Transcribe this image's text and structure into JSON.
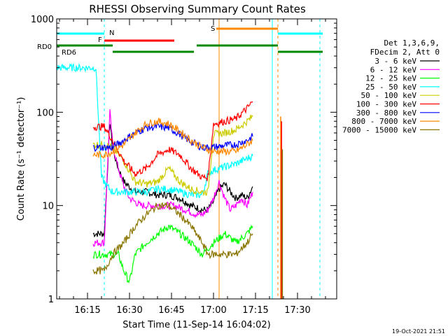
{
  "chart_data": {
    "type": "line",
    "title": "RHESSI Observing Summary Count Rates",
    "xlabel": "Start Time (11-Sep-14 16:04:02)",
    "ylabel": "Count Rate (s⁻¹ detector⁻¹)",
    "yscale": "log",
    "ylim": [
      1,
      1000
    ],
    "xlim_minutes": [
      0,
      100
    ],
    "x_ticks": [
      {
        "label": "16:15",
        "t": 11
      },
      {
        "label": "16:30",
        "t": 26
      },
      {
        "label": "16:45",
        "t": 41
      },
      {
        "label": "17:00",
        "t": 56
      },
      {
        "label": "17:15",
        "t": 71
      },
      {
        "label": "17:30",
        "t": 86
      }
    ],
    "y_ticks": [
      {
        "label": "1",
        "v": 1
      },
      {
        "label": "10",
        "v": 10
      },
      {
        "label": "100",
        "v": 100
      },
      {
        "label": "1000",
        "v": 1000
      }
    ],
    "legend_header": [
      "Det 1,3,6,9,",
      "FDecim 2, Att 0"
    ],
    "legend_position": "right",
    "footer_timestamp": "19-Oct-2021 21:51",
    "series": [
      {
        "name": "3 - 6 keV",
        "color": "#000000",
        "x": [
          13,
          17,
          19,
          20,
          22,
          24,
          28,
          32,
          36,
          40,
          44,
          48,
          52,
          54,
          56,
          58,
          60,
          62,
          64,
          66,
          68,
          70
        ],
        "y": [
          5,
          5,
          80,
          40,
          25,
          18,
          14,
          14,
          13,
          13,
          12,
          10,
          9,
          9,
          11,
          15,
          17,
          14,
          12,
          13,
          12,
          16
        ]
      },
      {
        "name": "6 - 12 keV",
        "color": "#ff00ff",
        "x": [
          13,
          17,
          19,
          20,
          22,
          24,
          26,
          30,
          34,
          38,
          42,
          46,
          50,
          52,
          54,
          56,
          58,
          60,
          62,
          64,
          66,
          68,
          70
        ],
        "y": [
          4,
          4,
          100,
          45,
          25,
          16,
          12,
          10,
          10,
          10,
          10,
          9,
          8,
          8,
          9,
          12,
          18,
          12,
          9,
          10,
          12,
          10,
          14
        ]
      },
      {
        "name": "12 - 25 keV",
        "color": "#00ff00",
        "x": [
          13,
          15,
          17,
          20,
          22,
          24,
          26,
          28,
          32,
          36,
          40,
          44,
          48,
          52,
          56,
          60,
          64,
          68,
          70
        ],
        "y": [
          3,
          3,
          3,
          3,
          3,
          2,
          1.5,
          3,
          4,
          5,
          6,
          5,
          4,
          3,
          4,
          5,
          4,
          5,
          6
        ]
      },
      {
        "name": "25 - 50 keV",
        "color": "#00ffff",
        "x": [
          0,
          2,
          4,
          6,
          8,
          10,
          12,
          14,
          16,
          18,
          20,
          24,
          28,
          32,
          36,
          40,
          44,
          48,
          52,
          54,
          56,
          60,
          64,
          68,
          70
        ],
        "y": [
          300,
          300,
          300,
          300,
          300,
          300,
          300,
          300,
          20,
          16,
          14,
          14,
          14,
          14,
          15,
          15,
          14,
          13,
          13,
          22,
          24,
          26,
          28,
          32,
          34
        ]
      },
      {
        "name": "50 - 100 keV",
        "color": "#cccc00",
        "x": [
          13,
          17,
          20,
          24,
          28,
          32,
          36,
          40,
          44,
          48,
          52,
          54,
          56,
          60,
          64,
          68,
          70
        ],
        "y": [
          45,
          45,
          42,
          30,
          18,
          17,
          18,
          25,
          18,
          15,
          14,
          14,
          58,
          60,
          65,
          80,
          90
        ]
      },
      {
        "name": "100 - 300 keV",
        "color": "#ff0000",
        "x": [
          13,
          17,
          20,
          24,
          28,
          32,
          36,
          40,
          44,
          48,
          52,
          54,
          56,
          60,
          64,
          68,
          70
        ],
        "y": [
          70,
          70,
          50,
          30,
          22,
          25,
          35,
          40,
          35,
          25,
          20,
          20,
          75,
          80,
          85,
          110,
          130
        ]
      },
      {
        "name": "300 - 800 keV",
        "color": "#0000ff",
        "x": [
          13,
          17,
          20,
          24,
          28,
          32,
          36,
          40,
          44,
          48,
          52,
          54,
          56,
          60,
          64,
          68,
          70
        ],
        "y": [
          42,
          42,
          42,
          50,
          60,
          68,
          70,
          68,
          58,
          48,
          42,
          42,
          42,
          44,
          45,
          50,
          55
        ]
      },
      {
        "name": "800 - 7000 keV",
        "color": "#ff8800",
        "x": [
          13,
          17,
          20,
          24,
          28,
          32,
          36,
          40,
          44,
          48,
          52,
          54,
          56,
          60,
          64,
          68,
          70
        ],
        "y": [
          35,
          35,
          38,
          45,
          60,
          75,
          80,
          75,
          62,
          50,
          42,
          40,
          38,
          38,
          38,
          45,
          50
        ]
      },
      {
        "name": "7000 - 15000 keV",
        "color": "#8b7500",
        "x": [
          13,
          17,
          20,
          24,
          28,
          32,
          36,
          40,
          44,
          48,
          52,
          54,
          56,
          60,
          64,
          68,
          70
        ],
        "y": [
          2,
          2,
          3,
          4,
          6,
          8,
          10,
          10,
          8,
          6,
          4,
          3,
          3,
          3,
          3,
          4,
          5
        ]
      }
    ],
    "annotations": [
      {
        "label": "N",
        "color": "#00ffff"
      },
      {
        "label": "F",
        "color": "#ff0000"
      },
      {
        "label": "S",
        "color": "#ff8800"
      },
      {
        "label": "RD0",
        "color": "#008800"
      },
      {
        "label": "RD6",
        "color": "#008800"
      }
    ]
  }
}
